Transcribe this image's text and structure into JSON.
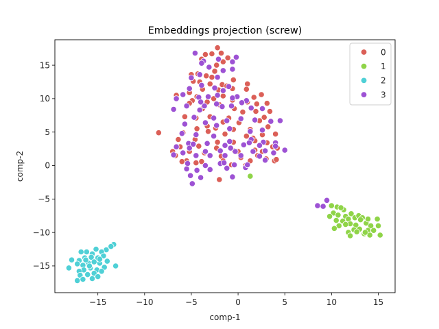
{
  "chart_data": {
    "type": "scatter",
    "title": "Embeddings projection (screw)",
    "xlabel": "comp-1",
    "ylabel": "comp-2",
    "xlim": [
      -19.6,
      16.8
    ],
    "ylim": [
      -19.0,
      18.8
    ],
    "xticks": [
      -15,
      -10,
      -5,
      0,
      5,
      10,
      15
    ],
    "yticks": [
      -15,
      -10,
      -5,
      0,
      5,
      10,
      15
    ],
    "grid": false,
    "legend_position": "top-right",
    "series": [
      {
        "name": "0",
        "color": "#db5f57",
        "points": [
          [
            -2.2,
            17.6
          ],
          [
            -3.5,
            16.6
          ],
          [
            -2.8,
            16.7
          ],
          [
            -1.8,
            16.8
          ],
          [
            -1.1,
            16.1
          ],
          [
            -2.3,
            15.0
          ],
          [
            -1.6,
            15.5
          ],
          [
            -3.9,
            15.9
          ],
          [
            -2.5,
            14.1
          ],
          [
            -5.0,
            13.6
          ],
          [
            -4.3,
            13.7
          ],
          [
            -3.4,
            13.4
          ],
          [
            -2.8,
            13.2
          ],
          [
            -4.1,
            12.5
          ],
          [
            -3.0,
            12.2
          ],
          [
            -1.7,
            12.1
          ],
          [
            -4.8,
            12.6
          ],
          [
            -3.8,
            11.4
          ],
          [
            -2.1,
            11.3
          ],
          [
            -1.2,
            11.9
          ],
          [
            -0.5,
            12.8
          ],
          [
            1.0,
            12.2
          ],
          [
            -5.2,
            10.9
          ],
          [
            -4.4,
            10.3
          ],
          [
            -2.6,
            10.0
          ],
          [
            -1.6,
            10.4
          ],
          [
            -0.6,
            11.5
          ],
          [
            0.9,
            11.4
          ],
          [
            1.7,
            10.2
          ],
          [
            2.5,
            10.6
          ],
          [
            -6.6,
            10.5
          ],
          [
            -4.9,
            9.7
          ],
          [
            -3.3,
            9.5
          ],
          [
            -2.0,
            9.1
          ],
          [
            -0.6,
            9.8
          ],
          [
            1.0,
            9.5
          ],
          [
            2.0,
            9.2
          ],
          [
            3.1,
            9.3
          ],
          [
            -5.2,
            9.3
          ],
          [
            -3.8,
            8.5
          ],
          [
            -0.4,
            8.5
          ],
          [
            0.5,
            8.0
          ],
          [
            1.9,
            8.1
          ],
          [
            2.8,
            7.2
          ],
          [
            3.4,
            8.1
          ],
          [
            -5.7,
            7.3
          ],
          [
            -4.5,
            7.1
          ],
          [
            -3.0,
            7.3
          ],
          [
            -1.0,
            7.1
          ],
          [
            0.1,
            6.4
          ],
          [
            2.3,
            6.7
          ],
          [
            -1.6,
            6.5
          ],
          [
            -3.3,
            5.9
          ],
          [
            -4.4,
            5.5
          ],
          [
            -2.4,
            5.6
          ],
          [
            -0.5,
            5.4
          ],
          [
            1.3,
            5.4
          ],
          [
            3.2,
            5.8
          ],
          [
            -5.9,
            4.9
          ],
          [
            -3.2,
            5.1
          ],
          [
            -8.5,
            4.9
          ],
          [
            -1.4,
            4.7
          ],
          [
            0.9,
            4.4
          ],
          [
            1.6,
            4.1
          ],
          [
            2.6,
            4.6
          ],
          [
            4.0,
            4.7
          ],
          [
            -2.2,
            3.5
          ],
          [
            -4.6,
            3.9
          ],
          [
            -6.4,
            3.9
          ],
          [
            -0.5,
            3.5
          ],
          [
            1.8,
            3.7
          ],
          [
            3.1,
            3.4
          ],
          [
            -6.2,
            2.8
          ],
          [
            -4.2,
            2.9
          ],
          [
            -2.3,
            2.6
          ],
          [
            0.0,
            2.1
          ],
          [
            1.8,
            2.3
          ],
          [
            3.7,
            2.8
          ],
          [
            4.2,
            2.6
          ],
          [
            -7.0,
            2.1
          ],
          [
            -5.2,
            2.1
          ],
          [
            -3.6,
            1.9
          ],
          [
            -1.8,
            1.4
          ],
          [
            0.3,
            1.2
          ],
          [
            2.1,
            1.5
          ],
          [
            3.0,
            1.0
          ],
          [
            -6.7,
            1.5
          ],
          [
            -5.5,
            0.7
          ],
          [
            -3.9,
            0.6
          ],
          [
            -1.6,
            0.7
          ],
          [
            1.3,
            0.7
          ],
          [
            3.9,
            0.7
          ],
          [
            -6.0,
            0.6
          ],
          [
            -4.5,
            0.4
          ],
          [
            -2.0,
            -2.1
          ],
          [
            -0.7,
            0.1
          ],
          [
            0.8,
            0.0
          ],
          [
            -0.4,
            2.2
          ],
          [
            2.6,
            2.1
          ],
          [
            4.1,
            0.9
          ]
        ]
      },
      {
        "name": "1",
        "color": "#8fd448",
        "points": [
          [
            1.3,
            -1.6
          ],
          [
            10.0,
            -6.0
          ],
          [
            10.6,
            -6.2
          ],
          [
            11.3,
            -6.6
          ],
          [
            10.2,
            -7.1
          ],
          [
            9.8,
            -7.6
          ],
          [
            10.7,
            -7.4
          ],
          [
            11.5,
            -7.6
          ],
          [
            12.1,
            -7.2
          ],
          [
            11.8,
            -8.0
          ],
          [
            10.5,
            -8.2
          ],
          [
            11.2,
            -8.3
          ],
          [
            12.5,
            -7.8
          ],
          [
            12.9,
            -7.5
          ],
          [
            13.3,
            -7.8
          ],
          [
            12.0,
            -8.7
          ],
          [
            11.5,
            -8.8
          ],
          [
            10.8,
            -9.0
          ],
          [
            10.3,
            -9.4
          ],
          [
            12.6,
            -8.9
          ],
          [
            13.0,
            -9.5
          ],
          [
            13.7,
            -8.6
          ],
          [
            14.2,
            -9.0
          ],
          [
            14.9,
            -8.0
          ],
          [
            15.0,
            -9.0
          ],
          [
            13.9,
            -9.7
          ],
          [
            12.4,
            -9.6
          ],
          [
            11.8,
            -10.0
          ],
          [
            13.5,
            -10.2
          ],
          [
            14.1,
            -10.4
          ],
          [
            15.2,
            -10.4
          ],
          [
            12.0,
            -10.5
          ],
          [
            13.9,
            -8.0
          ],
          [
            11.0,
            -6.3
          ],
          [
            13.1,
            -8.1
          ],
          [
            14.5,
            -9.7
          ],
          [
            12.7,
            -9.9
          ],
          [
            13.6,
            -10.0
          ]
        ]
      },
      {
        "name": "2",
        "color": "#4fd0d6",
        "points": [
          [
            -13.3,
            -11.8
          ],
          [
            -13.6,
            -12.1
          ],
          [
            -14.1,
            -12.6
          ],
          [
            -14.6,
            -12.9
          ],
          [
            -15.2,
            -12.5
          ],
          [
            -15.6,
            -13.2
          ],
          [
            -16.2,
            -12.9
          ],
          [
            -16.8,
            -12.9
          ],
          [
            -14.4,
            -13.5
          ],
          [
            -15.0,
            -13.8
          ],
          [
            -15.7,
            -13.7
          ],
          [
            -16.4,
            -13.8
          ],
          [
            -17.0,
            -14.2
          ],
          [
            -17.8,
            -14.1
          ],
          [
            -14.0,
            -14.3
          ],
          [
            -14.8,
            -14.6
          ],
          [
            -15.4,
            -14.4
          ],
          [
            -16.0,
            -14.6
          ],
          [
            -16.6,
            -14.9
          ],
          [
            -17.2,
            -14.7
          ],
          [
            -18.1,
            -15.3
          ],
          [
            -13.1,
            -15.0
          ],
          [
            -14.3,
            -15.2
          ],
          [
            -15.1,
            -15.6
          ],
          [
            -15.8,
            -15.3
          ],
          [
            -16.5,
            -15.6
          ],
          [
            -17.0,
            -15.8
          ],
          [
            -14.6,
            -15.8
          ],
          [
            -15.4,
            -16.1
          ],
          [
            -16.1,
            -16.3
          ],
          [
            -16.9,
            -16.4
          ],
          [
            -15.0,
            -16.6
          ],
          [
            -16.6,
            -17.0
          ],
          [
            -15.6,
            -16.9
          ],
          [
            -17.2,
            -17.2
          ],
          [
            -14.8,
            -14.0
          ],
          [
            -15.9,
            -15.0
          ],
          [
            -16.3,
            -14.1
          ]
        ]
      },
      {
        "name": "3",
        "color": "#9d52d4",
        "points": [
          [
            -4.6,
            16.8
          ],
          [
            -3.7,
            15.6
          ],
          [
            -2.1,
            15.9
          ],
          [
            -0.6,
            15.5
          ],
          [
            -3.1,
            14.7
          ],
          [
            -1.6,
            14.2
          ],
          [
            -0.6,
            14.4
          ],
          [
            -4.1,
            13.6
          ],
          [
            -5.0,
            13.1
          ],
          [
            -2.2,
            13.2
          ],
          [
            -3.9,
            12.0
          ],
          [
            -2.5,
            11.6
          ],
          [
            -1.6,
            11.2
          ],
          [
            -1.0,
            11.8
          ],
          [
            -5.2,
            11.5
          ],
          [
            -0.1,
            10.3
          ],
          [
            -4.2,
            10.2
          ],
          [
            -5.9,
            10.6
          ],
          [
            -6.6,
            10.0
          ],
          [
            -3.2,
            10.3
          ],
          [
            -2.2,
            10.5
          ],
          [
            -0.6,
            10.1
          ],
          [
            0.9,
            9.7
          ],
          [
            -5.5,
            8.9
          ],
          [
            -4.1,
            8.3
          ],
          [
            -3.6,
            8.9
          ],
          [
            -1.7,
            8.8
          ],
          [
            -0.7,
            8.9
          ],
          [
            0.4,
            9.4
          ],
          [
            1.4,
            8.6
          ],
          [
            2.6,
            8.5
          ],
          [
            -6.9,
            8.4
          ],
          [
            -4.7,
            7.2
          ],
          [
            -2.6,
            7.1
          ],
          [
            -1.2,
            6.7
          ],
          [
            0.3,
            7.0
          ],
          [
            1.8,
            6.8
          ],
          [
            3.5,
            6.6
          ],
          [
            -5.7,
            6.2
          ],
          [
            -3.5,
            6.4
          ],
          [
            -2.3,
            6.0
          ],
          [
            -0.9,
            5.5
          ],
          [
            1.3,
            5.1
          ],
          [
            2.6,
            5.3
          ],
          [
            4.5,
            6.7
          ],
          [
            -6.0,
            4.8
          ],
          [
            -4.5,
            4.6
          ],
          [
            -2.6,
            4.4
          ],
          [
            -0.9,
            3.6
          ],
          [
            1.4,
            3.9
          ],
          [
            2.7,
            3.5
          ],
          [
            4.0,
            3.4
          ],
          [
            -5.3,
            3.3
          ],
          [
            -4.8,
            3.2
          ],
          [
            -3.3,
            3.3
          ],
          [
            -1.4,
            3.0
          ],
          [
            0.6,
            3.1
          ],
          [
            1.2,
            3.4
          ],
          [
            2.3,
            3.0
          ],
          [
            4.0,
            2.9
          ],
          [
            -5.2,
            2.6
          ],
          [
            -3.5,
            2.1
          ],
          [
            -1.9,
            2.2
          ],
          [
            -0.3,
            2.1
          ],
          [
            1.6,
            2.1
          ],
          [
            2.9,
            2.2
          ],
          [
            5.0,
            2.3
          ],
          [
            -6.6,
            2.8
          ],
          [
            -5.9,
            1.9
          ],
          [
            -4.5,
            1.5
          ],
          [
            -3.0,
            1.5
          ],
          [
            -1.4,
            1.5
          ],
          [
            0.3,
            1.5
          ],
          [
            2.3,
            1.4
          ],
          [
            -6.9,
            1.6
          ],
          [
            -5.4,
            0.3
          ],
          [
            -3.5,
            0.0
          ],
          [
            -1.9,
            0.3
          ],
          [
            -0.4,
            0.1
          ],
          [
            0.8,
            -0.3
          ],
          [
            -5.5,
            -0.5
          ],
          [
            -4.4,
            -0.7
          ],
          [
            -3.0,
            -0.6
          ],
          [
            -1.2,
            -0.4
          ],
          [
            1.0,
            0.1
          ],
          [
            -5.1,
            -1.5
          ],
          [
            -4.0,
            -1.8
          ],
          [
            -4.9,
            -2.7
          ],
          [
            -0.6,
            -1.7
          ],
          [
            -1.5,
            0.4
          ],
          [
            3.8,
            1.9
          ],
          [
            2.9,
            0.8
          ],
          [
            -0.8,
            2.6
          ],
          [
            8.5,
            -6.0
          ],
          [
            9.1,
            -6.1
          ],
          [
            9.5,
            -5.2
          ],
          [
            -2.3,
            9.2
          ],
          [
            -4.0,
            9.5
          ],
          [
            -3.9,
            15.3
          ],
          [
            -0.2,
            16.2
          ]
        ]
      }
    ]
  }
}
